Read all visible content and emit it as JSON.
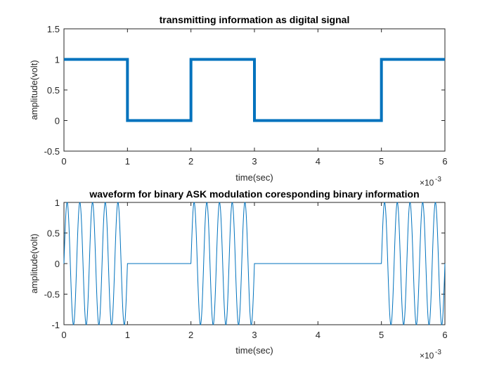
{
  "chart_data": [
    {
      "type": "line",
      "title": "transmitting information as digital signal",
      "xlabel": "time(sec)",
      "ylabel": "amplitude(volt)",
      "xlim": [
        0,
        6
      ],
      "ylim": [
        -0.5,
        1.5
      ],
      "x_exponent": "-3",
      "xticks": [
        "0",
        "1",
        "2",
        "3",
        "4",
        "5",
        "6"
      ],
      "yticks": [
        "-0.5",
        "0",
        "0.5",
        "1",
        "1.5"
      ],
      "bits": [
        1,
        0,
        1,
        0,
        0,
        1
      ],
      "series_color": "#0072BD",
      "line_width": "thick",
      "series": [
        {
          "x": [
            0,
            1,
            1,
            2,
            2,
            3,
            3,
            5,
            5,
            6
          ],
          "y": [
            1,
            1,
            0,
            0,
            1,
            1,
            0,
            0,
            1,
            1
          ]
        }
      ]
    },
    {
      "type": "line",
      "title": "waveform for binary ASK modulation coresponding binary information",
      "xlabel": "time(sec)",
      "ylabel": "amplitude(volt)",
      "xlim": [
        0,
        6
      ],
      "ylim": [
        -1,
        1
      ],
      "x_exponent": "-3",
      "xticks": [
        "0",
        "1",
        "2",
        "3",
        "4",
        "5",
        "6"
      ],
      "yticks": [
        "-1",
        "-0.5",
        "0",
        "0.5",
        "1"
      ],
      "bits": [
        1,
        0,
        1,
        0,
        0,
        1
      ],
      "carrier_cycles_per_bit": 5,
      "series_color": "#0072BD",
      "line_width": "thin"
    }
  ]
}
